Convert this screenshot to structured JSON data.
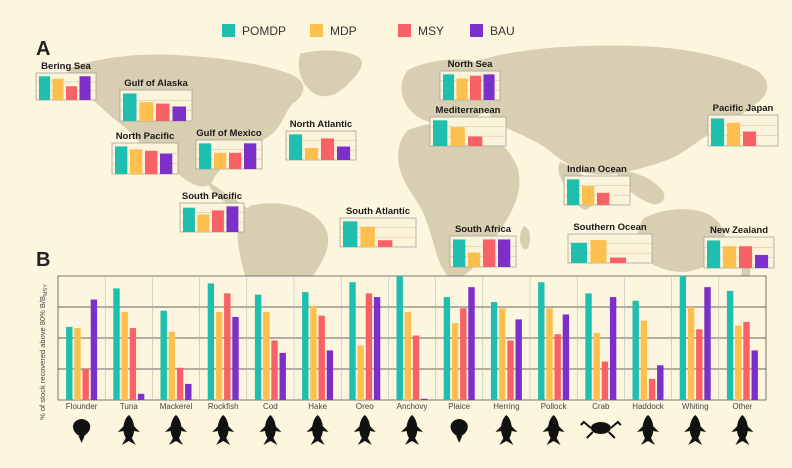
{
  "legend": [
    {
      "label": "POMDP",
      "color": "#1fbfb0"
    },
    {
      "label": "MDP",
      "color": "#fdc04f"
    },
    {
      "label": "MSY",
      "color": "#f86166"
    },
    {
      "label": "BAU",
      "color": "#7c2fc9"
    }
  ],
  "panel_a": {
    "letter": "A"
  },
  "panel_b": {
    "letter": "B",
    "ylabel": "% of stock recovered above 80% B/B",
    "ylabel_sub": "MSY"
  },
  "chart_data": [
    {
      "type": "bar",
      "panel": "A",
      "series_names": [
        "POMDP",
        "MDP",
        "MSY",
        "BAU"
      ],
      "regions": [
        {
          "name": "Bering Sea",
          "values": [
            0.95,
            0.85,
            0.55,
            0.95
          ]
        },
        {
          "name": "Gulf of Alaska",
          "values": [
            0.95,
            0.65,
            0.6,
            0.5
          ]
        },
        {
          "name": "North Pacific",
          "values": [
            0.95,
            0.85,
            0.8,
            0.7
          ]
        },
        {
          "name": "Gulf of Mexico",
          "values": [
            0.95,
            0.6,
            0.6,
            0.95
          ]
        },
        {
          "name": "North Atlantic",
          "values": [
            0.95,
            0.45,
            0.8,
            0.5
          ]
        },
        {
          "name": "South Pacific",
          "values": [
            0.9,
            0.65,
            0.8,
            0.95
          ]
        },
        {
          "name": "South Atlantic",
          "values": [
            0.95,
            0.75,
            0.25,
            0
          ]
        },
        {
          "name": "North Sea",
          "values": [
            0.95,
            0.8,
            0.9,
            0.95
          ]
        },
        {
          "name": "Mediterranean",
          "values": [
            0.95,
            0.7,
            0.35,
            0
          ]
        },
        {
          "name": "Indian Ocean",
          "values": [
            0.95,
            0.7,
            0.45,
            0
          ]
        },
        {
          "name": "South Africa",
          "values": [
            0.95,
            0.5,
            0.95,
            0.95
          ]
        },
        {
          "name": "Southern Ocean",
          "values": [
            0.75,
            0.85,
            0.2,
            0
          ]
        },
        {
          "name": "Pacific Japan",
          "values": [
            0.95,
            0.8,
            0.5,
            0
          ]
        },
        {
          "name": "New Zealand",
          "values": [
            0.95,
            0.75,
            0.75,
            0.45
          ]
        }
      ]
    },
    {
      "type": "bar",
      "panel": "B",
      "ylim": [
        0,
        1
      ],
      "series": [
        {
          "name": "POMDP",
          "values": [
            0.59,
            0.9,
            0.72,
            0.94,
            0.85,
            0.87,
            0.95,
            1.0,
            0.83,
            0.79,
            0.95,
            0.86,
            0.8,
            1.0,
            0.88
          ]
        },
        {
          "name": "MDP",
          "values": [
            0.58,
            0.71,
            0.55,
            0.71,
            0.71,
            0.76,
            0.44,
            0.71,
            0.62,
            0.74,
            0.74,
            0.54,
            0.64,
            0.75,
            0.6
          ]
        },
        {
          "name": "MSY",
          "values": [
            0.25,
            0.58,
            0.26,
            0.86,
            0.48,
            0.68,
            0.86,
            0.52,
            0.74,
            0.48,
            0.53,
            0.31,
            0.17,
            0.57,
            0.63
          ]
        },
        {
          "name": "BAU",
          "values": [
            0.81,
            0.05,
            0.13,
            0.67,
            0.38,
            0.4,
            0.83,
            0.01,
            0.91,
            0.65,
            0.69,
            0.83,
            0.28,
            0.91,
            0.4
          ]
        }
      ],
      "categories": [
        "Flounder",
        "Tuna",
        "Mackerel",
        "Rockfish",
        "Cod",
        "Hake",
        "Oreo",
        "Anchovy",
        "Plaice",
        "Herring",
        "Pollock",
        "Crab",
        "Haddock",
        "Whiting",
        "Other"
      ],
      "grid": "horizontal"
    }
  ]
}
